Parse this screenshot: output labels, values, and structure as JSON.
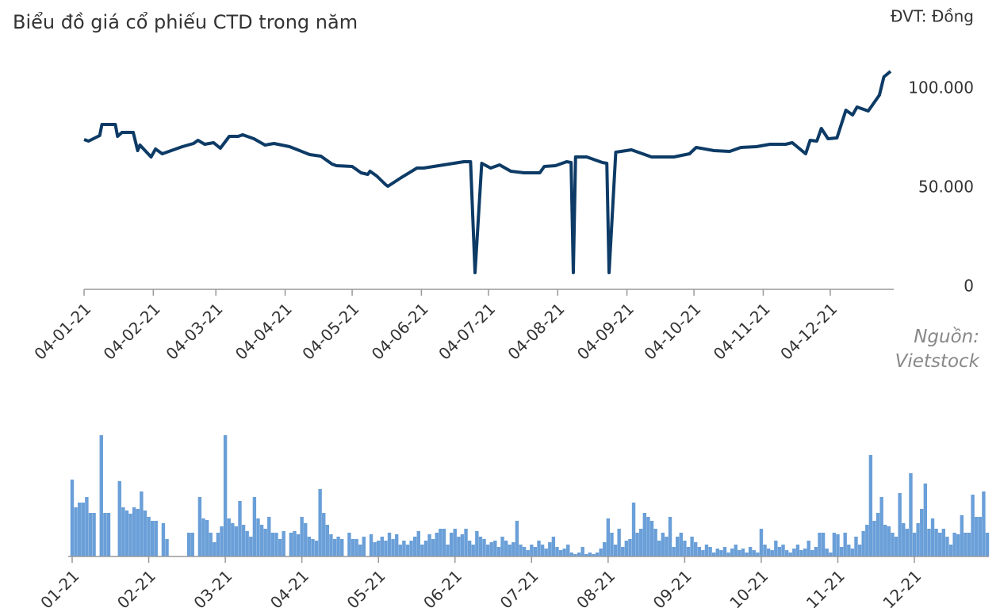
{
  "chart_data": [
    {
      "type": "line",
      "title": "Biểu đồ giá cổ phiếu CTD trong năm",
      "unit_label": "ĐVT: Đồng",
      "source": "Nguồn: Vietstock",
      "color": "#0d3b66",
      "x": [
        "04-01-21",
        "06-01-21",
        "11-01-21",
        "12-01-21",
        "15-01-21",
        "18-01-21",
        "19-01-21",
        "21-01-21",
        "26-01-21",
        "28-01-21",
        "29-01-21",
        "03-02-21",
        "05-02-21",
        "08-02-21",
        "17-02-21",
        "22-02-21",
        "24-02-21",
        "27-02-21",
        "03-03-21",
        "06-03-21",
        "10-03-21",
        "14-03-21",
        "16-03-21",
        "21-03-21",
        "26-03-21",
        "30-03-21",
        "06-04-21",
        "15-04-21",
        "20-04-21",
        "25-04-21",
        "27-04-21",
        "04-05-21",
        "08-05-21",
        "11-05-21",
        "12-05-21",
        "15-05-21",
        "19-05-21",
        "20-05-21",
        "26-05-21",
        "02-06-21",
        "05-06-21",
        "23-06-21",
        "26-06-21",
        "28-06-21",
        "01-07-21",
        "05-07-21",
        "09-07-21",
        "14-07-21",
        "20-07-21",
        "27-07-21",
        "29-07-21",
        "03-08-21",
        "08-08-21",
        "10-08-21",
        "11-08-21",
        "12-08-21",
        "17-08-21",
        "24-08-21",
        "26-08-21",
        "27-08-21",
        "30-08-21",
        "06-09-21",
        "15-09-21",
        "25-09-21",
        "02-10-21",
        "05-10-21",
        "13-10-21",
        "20-10-21",
        "25-10-21",
        "01-11-21",
        "07-11-21",
        "14-11-21",
        "17-11-21",
        "23-11-21",
        "25-11-21",
        "28-11-21",
        "30-11-21",
        "03-12-21",
        "07-12-21",
        "11-12-21",
        "14-12-21",
        "16-12-21",
        "21-12-21",
        "23-12-21",
        "26-12-21",
        "28-12-21",
        "31-12-21"
      ],
      "values": [
        75600,
        74800,
        77600,
        83200,
        83200,
        83200,
        77200,
        79200,
        79200,
        70000,
        72800,
        66800,
        70800,
        68400,
        72000,
        73600,
        75200,
        73200,
        74000,
        71200,
        77200,
        77200,
        78000,
        76000,
        72800,
        73600,
        72000,
        68000,
        67200,
        63200,
        62400,
        62000,
        58800,
        58000,
        59600,
        57200,
        52800,
        52000,
        56400,
        61200,
        61200,
        64400,
        64400,
        8400,
        63600,
        61200,
        62800,
        59600,
        58800,
        58800,
        62000,
        62400,
        64400,
        64000,
        8400,
        66800,
        66800,
        64000,
        63600,
        8400,
        69200,
        70400,
        66800,
        66800,
        68400,
        71600,
        70000,
        69600,
        71600,
        72000,
        73200,
        73200,
        74000,
        68400,
        75200,
        74800,
        81200,
        76000,
        76400,
        90400,
        88000,
        92000,
        90000,
        93200,
        98000,
        107200,
        110000
      ],
      "xlim": [
        "04-01-21",
        "31-12-21"
      ],
      "xticks": [
        "04-01-21",
        "04-02-21",
        "04-03-21",
        "04-04-21",
        "04-05-21",
        "04-06-21",
        "04-07-21",
        "04-08-21",
        "04-09-21",
        "04-10-21",
        "04-11-21",
        "04-12-21"
      ],
      "ylim": [
        0,
        110000
      ],
      "yticks": [
        0,
        {
          "value": 50000,
          "label": "50.000"
        },
        {
          "value": 100000,
          "label": "100.000"
        }
      ]
    },
    {
      "type": "bar",
      "color": "#6a9fd8",
      "values": [
        97,
        62,
        68,
        68,
        75,
        55,
        55,
        0,
        153,
        55,
        55,
        0,
        0,
        95,
        62,
        58,
        54,
        62,
        60,
        82,
        58,
        50,
        45,
        45,
        0,
        42,
        22,
        0,
        0,
        0,
        0,
        0,
        30,
        30,
        0,
        75,
        48,
        46,
        30,
        18,
        30,
        38,
        153,
        48,
        42,
        38,
        70,
        40,
        32,
        25,
        75,
        48,
        40,
        35,
        50,
        30,
        30,
        22,
        32,
        0,
        30,
        32,
        28,
        50,
        42,
        25,
        22,
        20,
        85,
        55,
        40,
        28,
        22,
        25,
        22,
        0,
        30,
        22,
        22,
        15,
        25,
        0,
        28,
        18,
        20,
        25,
        20,
        30,
        22,
        28,
        15,
        20,
        15,
        20,
        25,
        32,
        15,
        20,
        28,
        22,
        30,
        35,
        35,
        15,
        30,
        35,
        25,
        28,
        35,
        20,
        15,
        32,
        25,
        22,
        15,
        18,
        20,
        12,
        25,
        20,
        15,
        18,
        45,
        15,
        12,
        8,
        15,
        12,
        20,
        15,
        10,
        18,
        25,
        12,
        8,
        10,
        15,
        5,
        3,
        5,
        12,
        3,
        5,
        3,
        5,
        10,
        18,
        48,
        30,
        15,
        35,
        12,
        20,
        22,
        68,
        30,
        35,
        55,
        50,
        45,
        35,
        20,
        30,
        25,
        50,
        12,
        25,
        30,
        20,
        12,
        25,
        18,
        12,
        8,
        15,
        12,
        5,
        10,
        8,
        12,
        5,
        10,
        15,
        8,
        10,
        5,
        12,
        8,
        5,
        35,
        15,
        10,
        8,
        20,
        12,
        15,
        8,
        5,
        10,
        15,
        8,
        10,
        20,
        8,
        12,
        30,
        30,
        10,
        5,
        30,
        28,
        12,
        30,
        15,
        10,
        25,
        15,
        32,
        40,
        128,
        45,
        55,
        75,
        40,
        38,
        30,
        25,
        80,
        42,
        35,
        105,
        30,
        42,
        60,
        92,
        35,
        48,
        35,
        30,
        35,
        25,
        15,
        30,
        28,
        52,
        30,
        30,
        78,
        50,
        50,
        82,
        30
      ],
      "xlim": [
        0,
        251
      ],
      "ylim": [
        0,
        160
      ],
      "xticks": [
        {
          "value": 0,
          "label": "01-21"
        },
        {
          "value": 21,
          "label": "02-21"
        },
        {
          "value": 42,
          "label": "03-21"
        },
        {
          "value": 63,
          "label": "04-21"
        },
        {
          "value": 84,
          "label": "05-21"
        },
        {
          "value": 105,
          "label": "06-21"
        },
        {
          "value": 126,
          "label": "07-21"
        },
        {
          "value": 147,
          "label": "08-21"
        },
        {
          "value": 168,
          "label": "09-21"
        },
        {
          "value": 189,
          "label": "10-21"
        },
        {
          "value": 210,
          "label": "11-21"
        },
        {
          "value": 231,
          "label": "12-21"
        }
      ]
    }
  ]
}
